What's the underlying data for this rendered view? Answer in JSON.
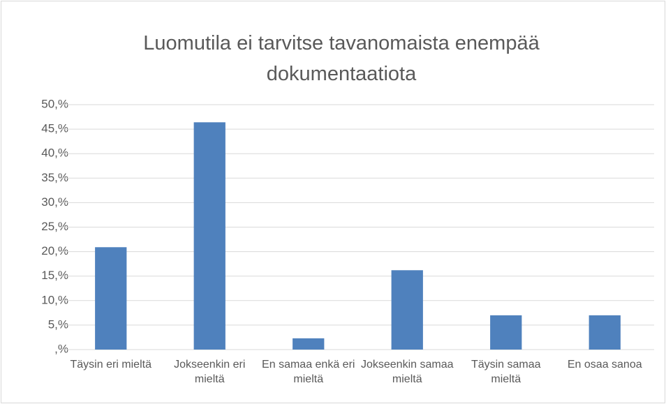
{
  "chart_data": {
    "type": "bar",
    "title": "Luomutila ei tarvitse tavanomaista enempää dokumentaatiota",
    "categories": [
      "Täysin eri mieltä",
      "Jokseenkin eri mieltä",
      "En samaa enkä eri mieltä",
      "Jokseenkin samaa mieltä",
      "Täysin samaa mieltä",
      "En osaa sanoa"
    ],
    "values": [
      20.9,
      46.4,
      2.3,
      16.2,
      7.0,
      7.0
    ],
    "color": "#4f81bd",
    "ylim": [
      0,
      50
    ],
    "yticks": [
      {
        "value": 0,
        "label": ",%"
      },
      {
        "value": 5,
        "label": "5,%"
      },
      {
        "value": 10,
        "label": "10,%"
      },
      {
        "value": 15,
        "label": "15,%"
      },
      {
        "value": 20,
        "label": "20,%"
      },
      {
        "value": 25,
        "label": "25,%"
      },
      {
        "value": 30,
        "label": "30,%"
      },
      {
        "value": 35,
        "label": "35,%"
      },
      {
        "value": 40,
        "label": "40,%"
      },
      {
        "value": 45,
        "label": "45,%"
      },
      {
        "value": 50,
        "label": "50,%"
      }
    ],
    "grid": true
  }
}
